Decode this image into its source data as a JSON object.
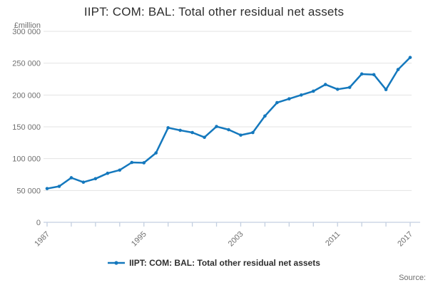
{
  "title": "IIPT: COM: BAL: Total other residual net assets",
  "y_unit": "£million",
  "legend": {
    "label": "IIPT: COM: BAL: Total other residual net assets"
  },
  "source_label": "Source:",
  "colors": {
    "line": "#1478bd",
    "grid": "#e3e3e3",
    "axis": "#c3cfe0",
    "tick_text": "#6f6f6f",
    "title_text": "#2e2e2e"
  },
  "chart_data": {
    "type": "line",
    "title": "IIPT: COM: BAL: Total other residual net assets",
    "xlabel": "",
    "ylabel": "£million",
    "x": [
      1987,
      1988,
      1989,
      1990,
      1991,
      1992,
      1993,
      1994,
      1995,
      1996,
      1997,
      1998,
      1999,
      2000,
      2001,
      2002,
      2003,
      2004,
      2005,
      2006,
      2007,
      2008,
      2009,
      2010,
      2011,
      2012,
      2013,
      2014,
      2015,
      2016,
      2017
    ],
    "values": [
      53000,
      56500,
      70000,
      63000,
      68500,
      77000,
      82000,
      94000,
      93500,
      109000,
      148500,
      144500,
      141000,
      133500,
      150500,
      145500,
      137000,
      141000,
      167000,
      188000,
      194000,
      200000,
      206000,
      216500,
      209000,
      212000,
      233000,
      232000,
      208500,
      240000,
      259000
    ],
    "ylim": [
      0,
      300000
    ],
    "ytick_step": 50000,
    "xtick_step": 2,
    "xtick_labels": [
      1987,
      1995,
      2003,
      2011,
      2017
    ],
    "grid": true,
    "legend_position": "bottom",
    "marker": "circle"
  }
}
